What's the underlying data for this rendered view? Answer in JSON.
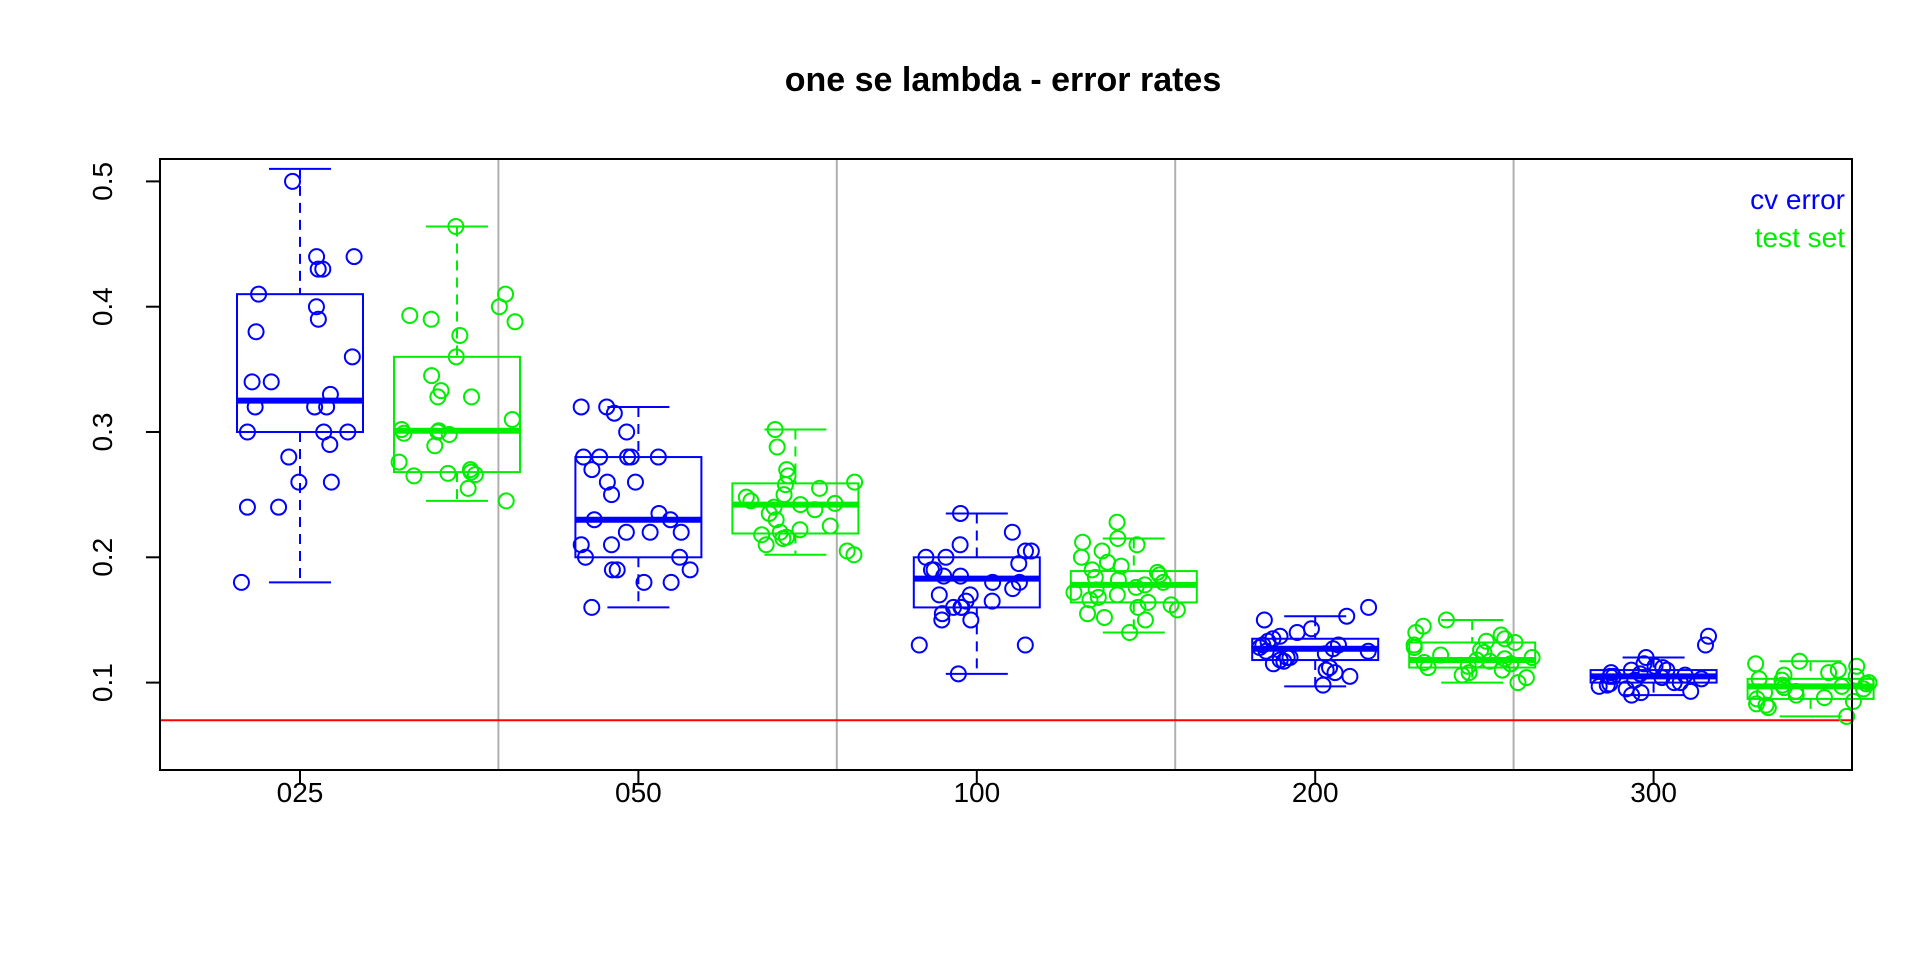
{
  "chart_data": {
    "type": "box",
    "title": "one se lambda - error rates",
    "xlabel": "",
    "ylabel": "",
    "categories": [
      "025",
      "050",
      "100",
      "200",
      "300"
    ],
    "ylim": [
      0.03,
      0.51
    ],
    "yticks": [
      "0.1",
      "0.2",
      "0.3",
      "0.4",
      "0.5"
    ],
    "reference_line": {
      "y": 0.07,
      "color": "#ff0000"
    },
    "grid": "vertical separators between groups",
    "legend": {
      "placement": "top-right",
      "entries": [
        {
          "label": "cv error",
          "color": "#0000ff"
        },
        {
          "label": "test set",
          "color": "#00ee00"
        }
      ]
    },
    "series": [
      {
        "name": "cv error",
        "color": "#0000ff",
        "boxes": [
          {
            "whisker_low": 0.18,
            "q1": 0.3,
            "median": 0.325,
            "q3": 0.41,
            "whisker_high": 0.51
          },
          {
            "whisker_low": 0.16,
            "q1": 0.2,
            "median": 0.23,
            "q3": 0.28,
            "whisker_high": 0.32
          },
          {
            "whisker_low": 0.107,
            "q1": 0.16,
            "median": 0.183,
            "q3": 0.2,
            "whisker_high": 0.235
          },
          {
            "whisker_low": 0.097,
            "q1": 0.118,
            "median": 0.127,
            "q3": 0.135,
            "whisker_high": 0.153
          },
          {
            "whisker_low": 0.09,
            "q1": 0.1,
            "median": 0.105,
            "q3": 0.11,
            "whisker_high": 0.12
          }
        ],
        "points": [
          [
            0.5,
            0.44,
            0.44,
            0.43,
            0.43,
            0.41,
            0.4,
            0.39,
            0.38,
            0.36,
            0.34,
            0.34,
            0.33,
            0.32,
            0.32,
            0.32,
            0.3,
            0.3,
            0.3,
            0.29,
            0.28,
            0.26,
            0.26,
            0.24,
            0.24,
            0.18
          ],
          [
            0.32,
            0.32,
            0.315,
            0.3,
            0.28,
            0.28,
            0.28,
            0.28,
            0.28,
            0.27,
            0.26,
            0.26,
            0.25,
            0.235,
            0.23,
            0.23,
            0.22,
            0.22,
            0.22,
            0.21,
            0.21,
            0.2,
            0.2,
            0.19,
            0.19,
            0.19,
            0.18,
            0.18,
            0.16
          ],
          [
            0.235,
            0.22,
            0.21,
            0.205,
            0.205,
            0.2,
            0.2,
            0.195,
            0.19,
            0.19,
            0.185,
            0.185,
            0.18,
            0.18,
            0.175,
            0.17,
            0.17,
            0.165,
            0.165,
            0.16,
            0.16,
            0.16,
            0.155,
            0.15,
            0.15,
            0.13,
            0.13,
            0.107
          ],
          [
            0.16,
            0.153,
            0.15,
            0.143,
            0.14,
            0.137,
            0.135,
            0.133,
            0.13,
            0.13,
            0.128,
            0.127,
            0.125,
            0.125,
            0.123,
            0.12,
            0.12,
            0.118,
            0.117,
            0.115,
            0.112,
            0.11,
            0.108,
            0.105,
            0.098
          ],
          [
            0.137,
            0.13,
            0.12,
            0.115,
            0.113,
            0.112,
            0.11,
            0.11,
            0.108,
            0.107,
            0.106,
            0.105,
            0.105,
            0.104,
            0.103,
            0.102,
            0.1,
            0.1,
            0.099,
            0.098,
            0.097,
            0.095,
            0.093,
            0.092,
            0.09
          ]
        ]
      },
      {
        "name": "test set",
        "color": "#00ee00",
        "boxes": [
          {
            "whisker_low": 0.245,
            "q1": 0.268,
            "median": 0.301,
            "q3": 0.36,
            "whisker_high": 0.464
          },
          {
            "whisker_low": 0.202,
            "q1": 0.219,
            "median": 0.242,
            "q3": 0.259,
            "whisker_high": 0.302
          },
          {
            "whisker_low": 0.14,
            "q1": 0.164,
            "median": 0.178,
            "q3": 0.189,
            "whisker_high": 0.215
          },
          {
            "whisker_low": 0.1,
            "q1": 0.112,
            "median": 0.118,
            "q3": 0.132,
            "whisker_high": 0.15
          },
          {
            "whisker_low": 0.073,
            "q1": 0.087,
            "median": 0.097,
            "q3": 0.103,
            "whisker_high": 0.117
          }
        ],
        "points": [
          [
            0.464,
            0.41,
            0.4,
            0.393,
            0.39,
            0.388,
            0.377,
            0.36,
            0.345,
            0.333,
            0.328,
            0.328,
            0.31,
            0.302,
            0.301,
            0.3,
            0.299,
            0.298,
            0.289,
            0.276,
            0.27,
            0.268,
            0.267,
            0.266,
            0.265,
            0.255,
            0.245
          ],
          [
            0.302,
            0.288,
            0.27,
            0.265,
            0.26,
            0.258,
            0.255,
            0.25,
            0.248,
            0.245,
            0.243,
            0.242,
            0.24,
            0.238,
            0.235,
            0.23,
            0.225,
            0.222,
            0.22,
            0.218,
            0.216,
            0.215,
            0.21,
            0.205,
            0.202
          ],
          [
            0.228,
            0.215,
            0.212,
            0.21,
            0.205,
            0.2,
            0.196,
            0.193,
            0.19,
            0.188,
            0.186,
            0.184,
            0.182,
            0.18,
            0.178,
            0.176,
            0.174,
            0.172,
            0.17,
            0.168,
            0.166,
            0.164,
            0.162,
            0.16,
            0.158,
            0.155,
            0.152,
            0.15,
            0.14
          ],
          [
            0.15,
            0.145,
            0.14,
            0.138,
            0.135,
            0.133,
            0.132,
            0.13,
            0.128,
            0.126,
            0.124,
            0.122,
            0.12,
            0.119,
            0.118,
            0.117,
            0.116,
            0.115,
            0.113,
            0.112,
            0.11,
            0.108,
            0.106,
            0.104,
            0.1
          ],
          [
            0.117,
            0.115,
            0.113,
            0.11,
            0.108,
            0.106,
            0.105,
            0.103,
            0.102,
            0.1,
            0.099,
            0.098,
            0.097,
            0.096,
            0.095,
            0.093,
            0.092,
            0.09,
            0.088,
            0.087,
            0.085,
            0.083,
            0.082,
            0.08,
            0.073
          ]
        ]
      }
    ]
  }
}
